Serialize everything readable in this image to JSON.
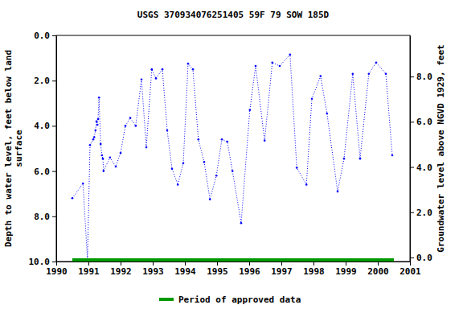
{
  "chart_data": {
    "type": "line",
    "title": "USGS 370934076251405 59F 79 SOW 185D",
    "ylabel": [
      "Depth to water level, feet below land",
      "surface"
    ],
    "y2label": "Groundwater level above NGVD 1929, feet",
    "x": [
      1990.5,
      1990.83,
      1990.97,
      1991.05,
      1991.15,
      1991.18,
      1991.22,
      1991.25,
      1991.28,
      1991.3,
      1991.33,
      1991.38,
      1991.42,
      1991.45,
      1991.47,
      1991.67,
      1991.85,
      1992.0,
      1992.15,
      1992.3,
      1992.47,
      1992.65,
      1992.8,
      1992.97,
      1993.1,
      1993.3,
      1993.45,
      1993.6,
      1993.78,
      1993.95,
      1994.1,
      1994.25,
      1994.42,
      1994.6,
      1994.78,
      1994.98,
      1995.15,
      1995.32,
      1995.48,
      1995.75,
      1996.02,
      1996.2,
      1996.48,
      1996.72,
      1996.95,
      1997.27,
      1997.48,
      1997.78,
      1997.95,
      1998.22,
      1998.42,
      1998.75,
      1998.95,
      1999.22,
      1999.45,
      1999.72,
      1999.95,
      2000.25,
      2000.45
    ],
    "series": [
      {
        "color": "#0000ff",
        "line_style": "dotted",
        "marker": "circle",
        "values": [
          7.2,
          6.55,
          9.9,
          4.85,
          4.6,
          4.5,
          4.2,
          3.8,
          3.95,
          3.7,
          2.75,
          4.8,
          5.3,
          5.45,
          6.0,
          5.4,
          5.8,
          5.2,
          4.0,
          3.65,
          4.0,
          1.95,
          4.95,
          1.5,
          1.9,
          1.5,
          4.2,
          5.9,
          6.6,
          5.65,
          1.25,
          1.5,
          4.6,
          5.6,
          7.25,
          6.2,
          4.6,
          4.7,
          6.0,
          8.3,
          3.3,
          1.35,
          4.65,
          1.2,
          1.35,
          0.85,
          5.85,
          6.6,
          2.8,
          1.8,
          3.45,
          6.9,
          5.45,
          1.7,
          5.45,
          1.7,
          1.2,
          1.7,
          5.3
        ]
      }
    ],
    "approved_period": {
      "name": "Period of approved data",
      "color": "#009900",
      "x": [
        1990.5,
        2000.5
      ]
    },
    "xlim": [
      1990,
      2001
    ],
    "xticks": [
      1990,
      1991,
      1992,
      1993,
      1994,
      1995,
      1996,
      1997,
      1998,
      1999,
      2000,
      2001
    ],
    "ylim": [
      10,
      0
    ],
    "yticks": [
      {
        "value": 0,
        "label": "0.0"
      },
      {
        "value": 2,
        "label": "2.0"
      },
      {
        "value": 4,
        "label": "4.0"
      },
      {
        "value": 6,
        "label": "6.0"
      },
      {
        "value": 8,
        "label": "8.0"
      },
      {
        "value": 10,
        "label": "10.0"
      }
    ],
    "y2lim": [
      -0.18,
      9.82
    ],
    "y2ticks": [
      {
        "value": 0,
        "label": "0.0"
      },
      {
        "value": 2,
        "label": "2.0"
      },
      {
        "value": 4,
        "label": "4.0"
      },
      {
        "value": 6,
        "label": "6.0"
      },
      {
        "value": 8,
        "label": "8.0"
      }
    ],
    "grid": false
  }
}
